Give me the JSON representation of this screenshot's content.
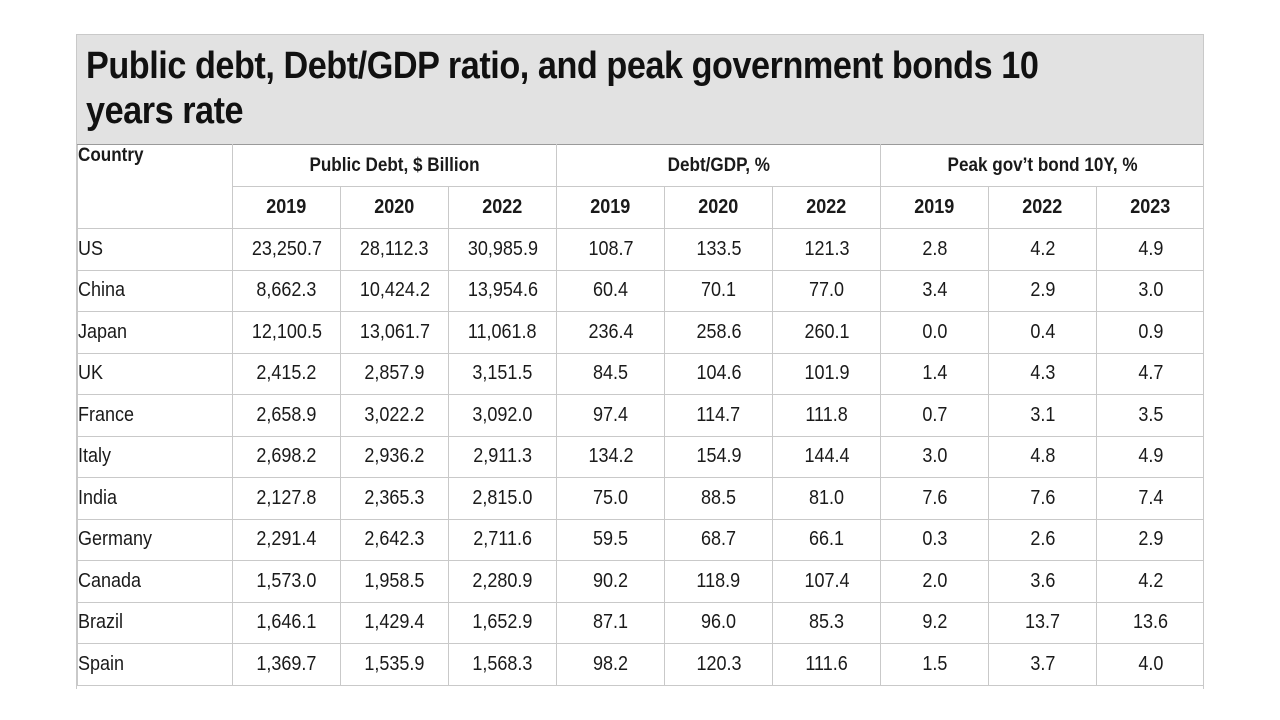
{
  "chart_data": {
    "type": "table",
    "title": "Public debt, Debt/GDP ratio, and peak government bonds 10 years rate",
    "row_header": "Country",
    "column_groups": [
      {
        "name": "Public Debt, $ Billion",
        "years": [
          "2019",
          "2020",
          "2022"
        ]
      },
      {
        "name": "Debt/GDP, %",
        "years": [
          "2019",
          "2020",
          "2022"
        ]
      },
      {
        "name": "Peak gov’t bond 10Y, %",
        "years": [
          "2019",
          "2022",
          "2023"
        ]
      }
    ],
    "rows": [
      {
        "country": "US",
        "values": [
          "23,250.7",
          "28,112.3",
          "30,985.9",
          "108.7",
          "133.5",
          "121.3",
          "2.8",
          "4.2",
          "4.9"
        ]
      },
      {
        "country": "China",
        "values": [
          "8,662.3",
          "10,424.2",
          "13,954.6",
          "60.4",
          "70.1",
          "77.0",
          "3.4",
          "2.9",
          "3.0"
        ]
      },
      {
        "country": "Japan",
        "values": [
          "12,100.5",
          "13,061.7",
          "11,061.8",
          "236.4",
          "258.6",
          "260.1",
          "0.0",
          "0.4",
          "0.9"
        ]
      },
      {
        "country": "UK",
        "values": [
          "2,415.2",
          "2,857.9",
          "3,151.5",
          "84.5",
          "104.6",
          "101.9",
          "1.4",
          "4.3",
          "4.7"
        ]
      },
      {
        "country": "France",
        "values": [
          "2,658.9",
          "3,022.2",
          "3,092.0",
          "97.4",
          "114.7",
          "111.8",
          "0.7",
          "3.1",
          "3.5"
        ]
      },
      {
        "country": "Italy",
        "values": [
          "2,698.2",
          "2,936.2",
          "2,911.3",
          "134.2",
          "154.9",
          "144.4",
          "3.0",
          "4.8",
          "4.9"
        ]
      },
      {
        "country": "India",
        "values": [
          "2,127.8",
          "2,365.3",
          "2,815.0",
          "75.0",
          "88.5",
          "81.0",
          "7.6",
          "7.6",
          "7.4"
        ]
      },
      {
        "country": "Germany",
        "values": [
          "2,291.4",
          "2,642.3",
          "2,711.6",
          "59.5",
          "68.7",
          "66.1",
          "0.3",
          "2.6",
          "2.9"
        ]
      },
      {
        "country": "Canada",
        "values": [
          "1,573.0",
          "1,958.5",
          "2,280.9",
          "90.2",
          "118.9",
          "107.4",
          "2.0",
          "3.6",
          "4.2"
        ]
      },
      {
        "country": "Brazil",
        "values": [
          "1,646.1",
          "1,429.4",
          "1,652.9",
          "87.1",
          "96.0",
          "85.3",
          "9.2",
          "13.7",
          "13.6"
        ]
      },
      {
        "country": "Spain",
        "values": [
          "1,369.7",
          "1,535.9",
          "1,568.3",
          "98.2",
          "120.3",
          "111.6",
          "1.5",
          "3.7",
          "4.0"
        ]
      }
    ]
  },
  "colors": {
    "title_band": "#e2e2e2",
    "grid": "#c9c9c9",
    "text": "#1a1a1a"
  }
}
